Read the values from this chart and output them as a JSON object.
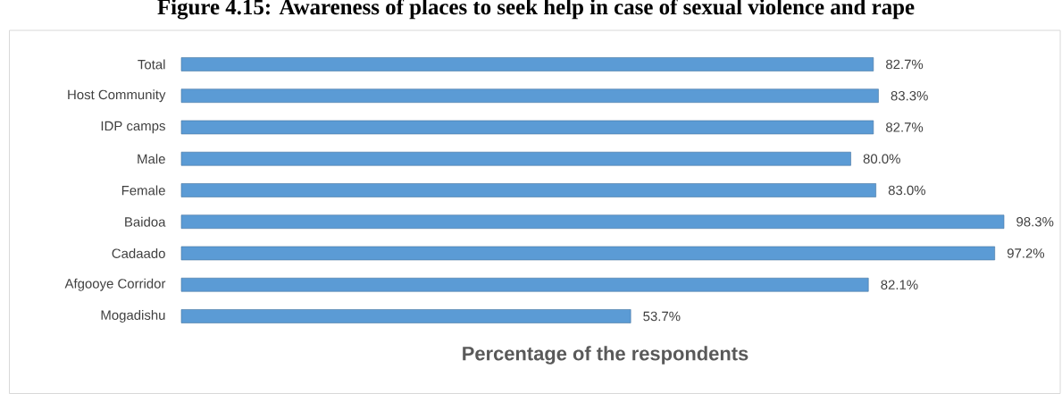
{
  "chart_data": {
    "type": "bar",
    "orientation": "horizontal",
    "title": "Figure 4.15: Awareness of places to seek help in case of sexual violence and rape",
    "xlabel": "Percentage of the respondents",
    "categories": [
      "Total",
      "Host Community",
      "IDP camps",
      "Male",
      "Female",
      "Baidoa",
      "Cadaado",
      "Afgooye Corridor",
      "Mogadishu"
    ],
    "values": [
      82.7,
      83.3,
      82.7,
      80.0,
      83.0,
      98.3,
      97.2,
      82.1,
      53.7
    ],
    "value_labels": [
      "82.7%",
      "83.3%",
      "82.7%",
      "80.0%",
      "83.0%",
      "98.3%",
      "97.2%",
      "82.1%",
      "53.7%"
    ],
    "color": "#5b9bd5"
  }
}
